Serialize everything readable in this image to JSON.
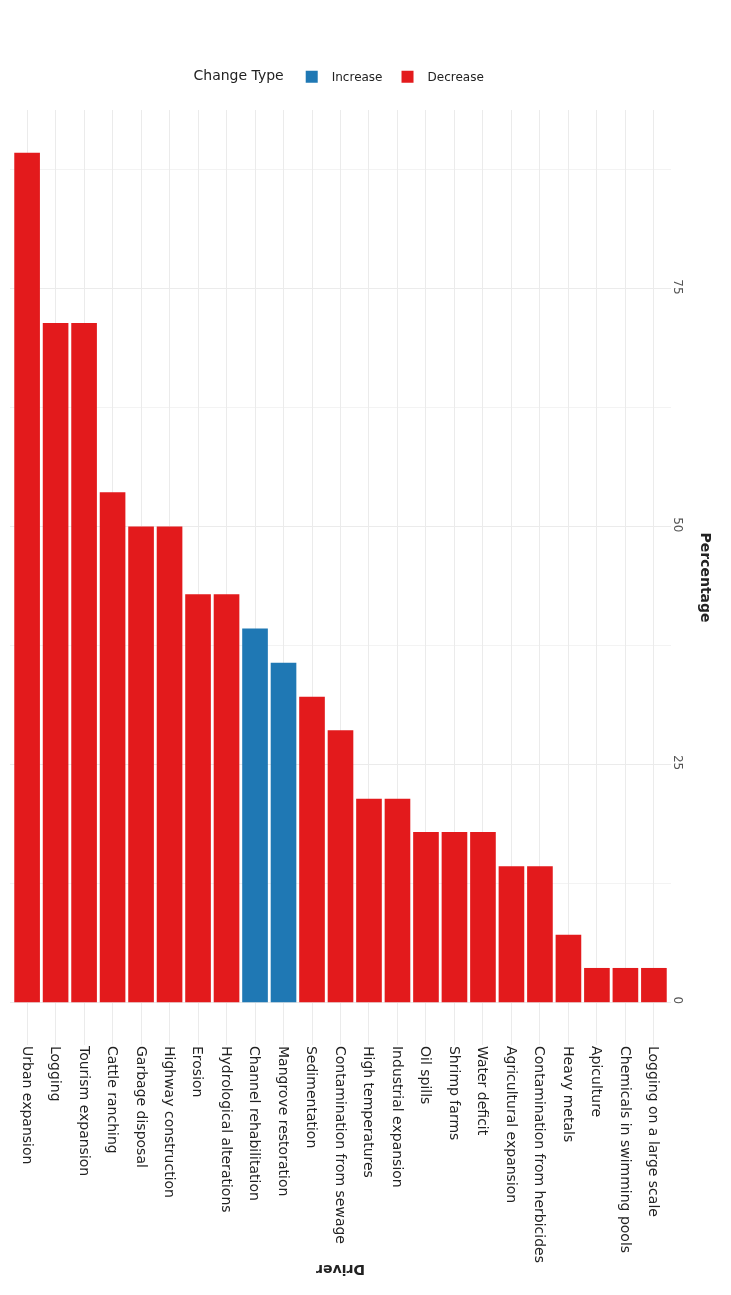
{
  "chart_data": {
    "type": "bar",
    "xlabel": "Driver",
    "ylabel": "Percentage",
    "legend_title": "Change Type",
    "categories": [
      "Urban expansion",
      "Logging",
      "Tourism expansion",
      "Cattle ranching",
      "Garbage disposal",
      "Highway construction",
      "Erosion",
      "Hydrological alterations",
      "Channel rehabilitation",
      "Mangrove restoration",
      "Sedimentation",
      "Contamination from sewage",
      "High temperatures",
      "Industrial expansion",
      "Oil spills",
      "Shrimp farms",
      "Water deficit",
      "Agricultural expansion",
      "Contamination from herbicides",
      "Heavy metals",
      "Apiculture",
      "Chemicals in swimming pools",
      "Logging on a large scale"
    ],
    "series": [
      {
        "name": "Increase",
        "color": "#1f78b4",
        "values": [
          null,
          null,
          null,
          null,
          null,
          null,
          null,
          null,
          39.3,
          35.7,
          null,
          null,
          null,
          null,
          null,
          null,
          null,
          null,
          null,
          null,
          null,
          null,
          null
        ]
      },
      {
        "name": "Decrease",
        "color": "#e31a1c",
        "values": [
          89.3,
          71.4,
          71.4,
          53.6,
          50.0,
          50.0,
          42.9,
          42.9,
          null,
          null,
          32.1,
          28.6,
          21.4,
          21.4,
          17.9,
          17.9,
          17.9,
          14.3,
          14.3,
          7.1,
          3.6,
          3.6,
          3.6
        ]
      }
    ],
    "ylim": [
      -4.5,
      93.8
    ],
    "yticks": [
      0,
      25,
      50,
      75
    ],
    "grid": true,
    "legend": "top"
  }
}
